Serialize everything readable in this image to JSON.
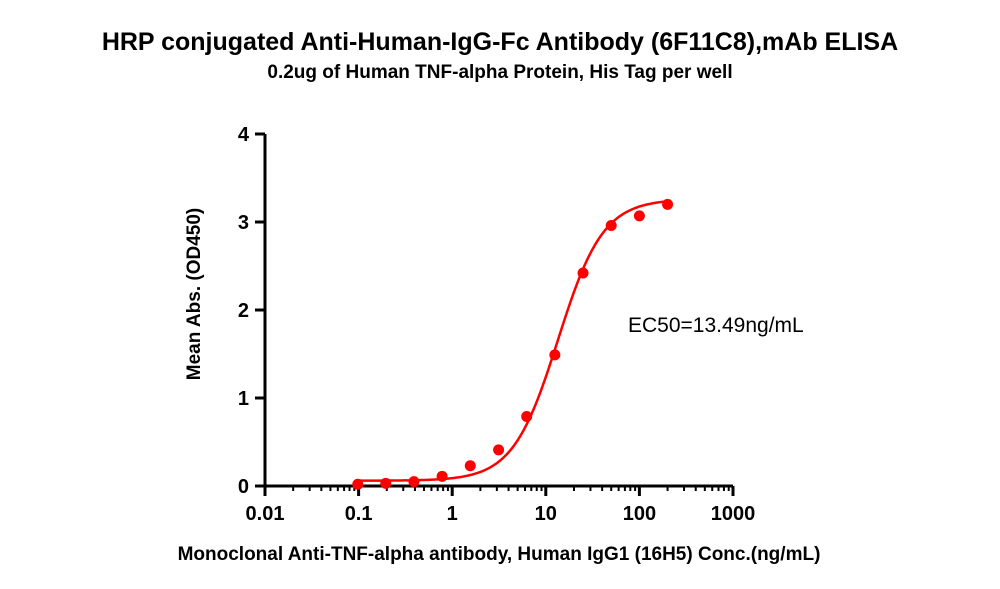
{
  "chart_data": {
    "type": "scatter",
    "title": "HRP conjugated Anti-Human-IgG-Fc Antibody (6F11C8),mAb  ELISA",
    "subtitle": "0.2ug of Human TNF-alpha Protein, His Tag per well",
    "xlabel": "Monoclonal Anti-TNF-alpha antibody, Human IgG1 (16H5) Conc.(ng/mL)",
    "ylabel": "Mean Abs. (OD450)",
    "x_scale": "log",
    "xlim": [
      0.01,
      1000
    ],
    "ylim": [
      0,
      4
    ],
    "x_ticks": [
      "0.01",
      "0.1",
      "1",
      "10",
      "100",
      "1000"
    ],
    "y_ticks": [
      "0",
      "1",
      "2",
      "3",
      "4"
    ],
    "grid": false,
    "series_color": "#ff0000",
    "points": [
      {
        "x": 0.098,
        "y": 0.02
      },
      {
        "x": 0.195,
        "y": 0.03
      },
      {
        "x": 0.39,
        "y": 0.05
      },
      {
        "x": 0.78,
        "y": 0.11
      },
      {
        "x": 1.56,
        "y": 0.23
      },
      {
        "x": 3.13,
        "y": 0.41
      },
      {
        "x": 6.25,
        "y": 0.79
      },
      {
        "x": 12.5,
        "y": 1.49
      },
      {
        "x": 25,
        "y": 2.42
      },
      {
        "x": 50,
        "y": 2.96
      },
      {
        "x": 100,
        "y": 3.07
      },
      {
        "x": 200,
        "y": 3.2
      }
    ],
    "fit": {
      "model": "4PL",
      "bottom": 0.06,
      "top": 3.26,
      "ec50": 13.49,
      "hill": 1.8
    },
    "annotation": "EC50=13.49ng/mL"
  }
}
